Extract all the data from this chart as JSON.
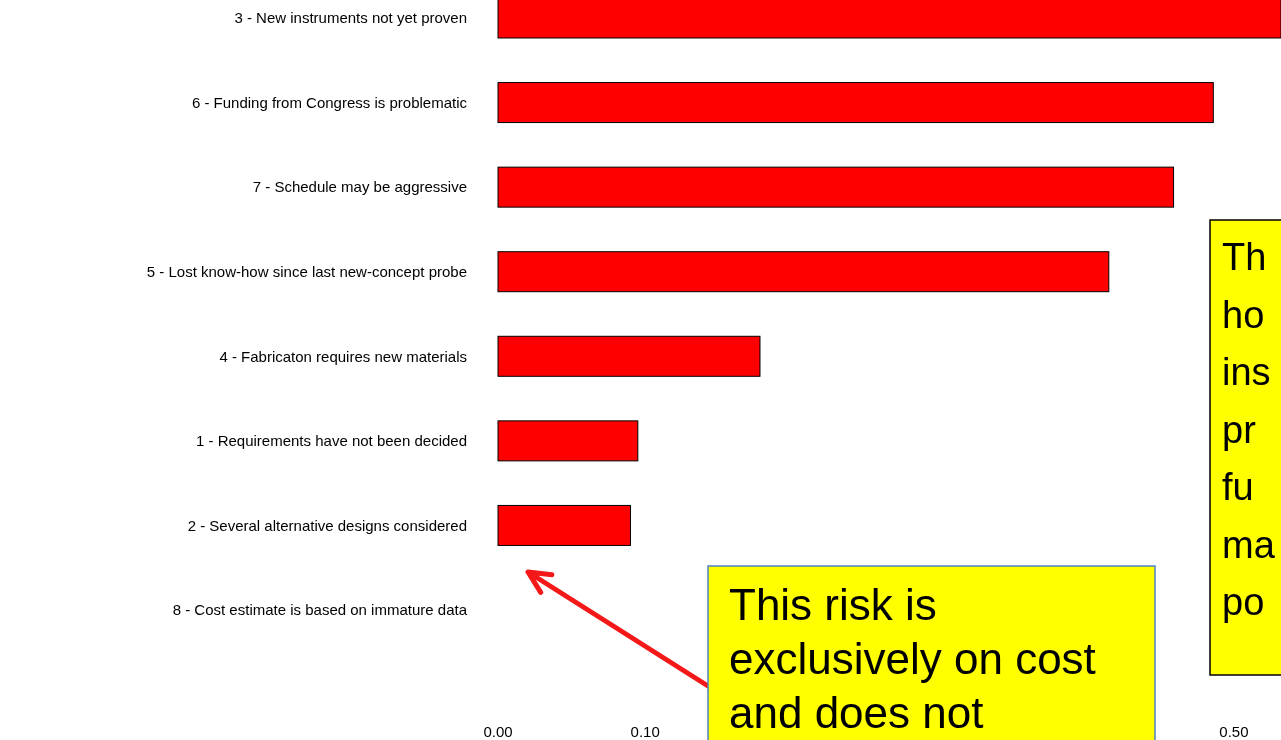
{
  "chart_data": {
    "type": "bar",
    "orientation": "horizontal",
    "categories": [
      "3 - New instruments not yet proven",
      "6 - Funding from Congress is problematic",
      "7 - Schedule may be aggressive",
      "5 - Lost know-how since last new-concept probe",
      "4 - Fabricaton requires new materials",
      "1 - Requirements have not been decided",
      "2 - Several alternative designs considered",
      "8 - Cost estimate is based on immature data"
    ],
    "values": [
      0.532,
      0.486,
      0.459,
      0.415,
      0.178,
      0.095,
      0.09,
      0
    ],
    "color": "#ff0000",
    "xlim": [
      0,
      0.532
    ],
    "xticks": [
      {
        "value": 0,
        "label": "0.00"
      },
      {
        "value": 0.1,
        "label": "0.10"
      },
      {
        "value": 0.5,
        "label": "0.50"
      }
    ],
    "annotations": [
      "This risk is\nexclusively on cost\nand does not",
      "Th\nho\nins\npr\nfu\nma\npo"
    ]
  }
}
